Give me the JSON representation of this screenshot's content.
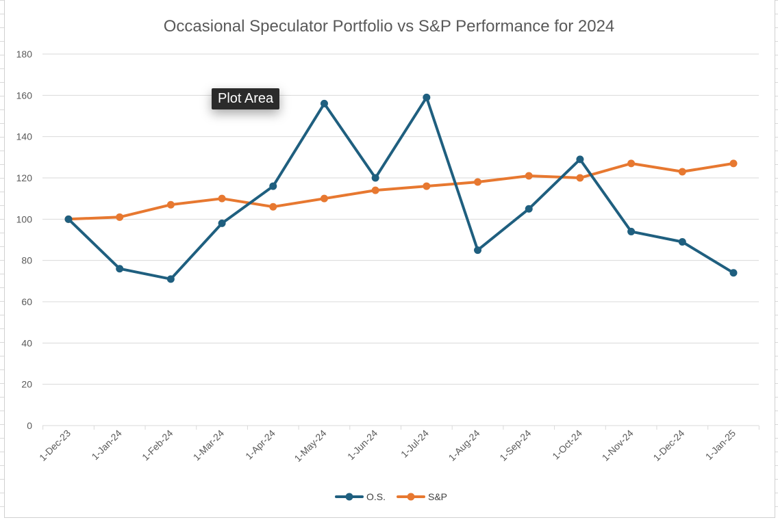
{
  "tooltip": "Plot Area",
  "chart_data": {
    "type": "line",
    "title": "Occasional Speculator Portfolio vs S&P Performance for 2024",
    "xlabel": "",
    "ylabel": "",
    "ylim": [
      0,
      180
    ],
    "y_ticks": [
      0,
      20,
      40,
      60,
      80,
      100,
      120,
      140,
      160,
      180
    ],
    "categories": [
      "1-Dec-23",
      "1-Jan-24",
      "1-Feb-24",
      "1-Mar-24",
      "1-Apr-24",
      "1-May-24",
      "1-Jun-24",
      "1-Jul-24",
      "1-Aug-24",
      "1-Sep-24",
      "1-Oct-24",
      "1-Nov-24",
      "1-Dec-24",
      "1-Jan-25"
    ],
    "series": [
      {
        "name": "O.S.",
        "color": "#1f5f7f",
        "values": [
          100,
          76,
          71,
          98,
          116,
          156,
          120,
          159,
          85,
          105,
          129,
          94,
          89,
          74
        ]
      },
      {
        "name": "S&P",
        "color": "#e77830",
        "values": [
          100,
          101,
          107,
          110,
          106,
          110,
          114,
          116,
          118,
          121,
          120,
          127,
          123,
          127
        ]
      }
    ],
    "grid": true,
    "legend_position": "bottom"
  }
}
